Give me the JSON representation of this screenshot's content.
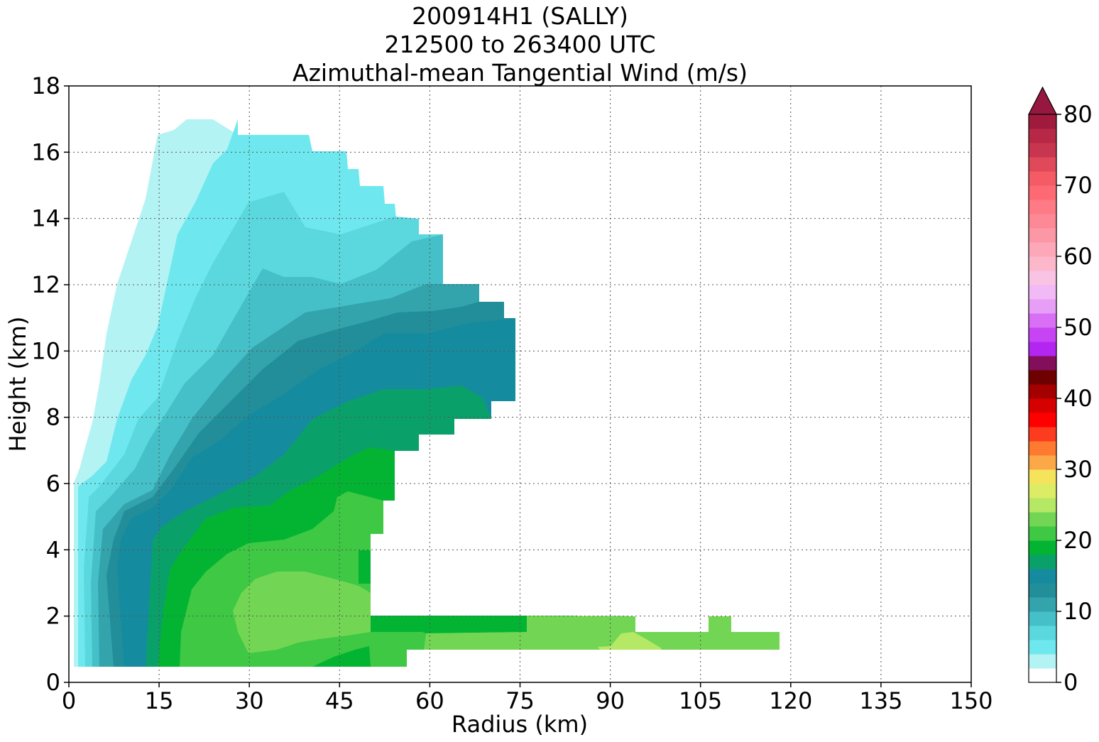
{
  "chart_data": {
    "type": "heatmap",
    "title_lines": [
      "200914H1 (SALLY)",
      "212500 to 263400 UTC",
      "Azimuthal-mean Tangential Wind (m/s)"
    ],
    "xlabel": "Radius (km)",
    "ylabel": "Height (km)",
    "xlim": [
      0,
      150
    ],
    "ylim": [
      0,
      18
    ],
    "x_ticks": [
      0,
      15,
      30,
      45,
      60,
      75,
      90,
      105,
      120,
      135,
      150
    ],
    "y_ticks": [
      0,
      2,
      4,
      6,
      8,
      10,
      12,
      14,
      16,
      18
    ],
    "grid": true,
    "colorbar": {
      "min": 0,
      "max": 80,
      "step": 2,
      "ticks": [
        0,
        10,
        20,
        30,
        40,
        50,
        60,
        70,
        80
      ],
      "extend": "max",
      "colors": [
        "#ffffff",
        "#b4f3f4",
        "#6ee8ee",
        "#5bd8de",
        "#45c0c8",
        "#33a3ac",
        "#218e9a",
        "#158ba0",
        "#0aa06a",
        "#03b433",
        "#3ec844",
        "#72d654",
        "#b5e864",
        "#dcec64",
        "#f5e35c",
        "#fda848",
        "#fd7a30",
        "#fd3b1e",
        "#ff0000",
        "#d70000",
        "#a40000",
        "#6e0000",
        "#830f5b",
        "#b326f1",
        "#c744f5",
        "#d86ff5",
        "#e79ef6",
        "#f1b9f5",
        "#f9c3e4",
        "#fcb7cb",
        "#fca8b8",
        "#fc98a6",
        "#fd8896",
        "#fe7a84",
        "#fd6a73",
        "#f45b65",
        "#e0495a",
        "#c8354e",
        "#b62846",
        "#a01a3e"
      ],
      "extend_color": "#961840"
    },
    "levels_plotted": [
      {
        "max_value": 4,
        "color": "#b4f3f4"
      },
      {
        "max_value": 6,
        "color": "#6ee8ee"
      },
      {
        "max_value": 8,
        "color": "#5bd8de"
      },
      {
        "max_value": 10,
        "color": "#45c0c8"
      },
      {
        "max_value": 12,
        "color": "#33a3ac"
      },
      {
        "max_value": 14,
        "color": "#218e9a"
      },
      {
        "max_value": 16,
        "color": "#158ba0"
      },
      {
        "max_value": 18,
        "color": "#0aa06a"
      },
      {
        "max_value": 20,
        "color": "#03b433"
      },
      {
        "max_value": 22,
        "color": "#3ec844"
      },
      {
        "max_value": 24,
        "color": "#72d654"
      },
      {
        "max_value": 26,
        "color": "#b5e864"
      }
    ]
  }
}
